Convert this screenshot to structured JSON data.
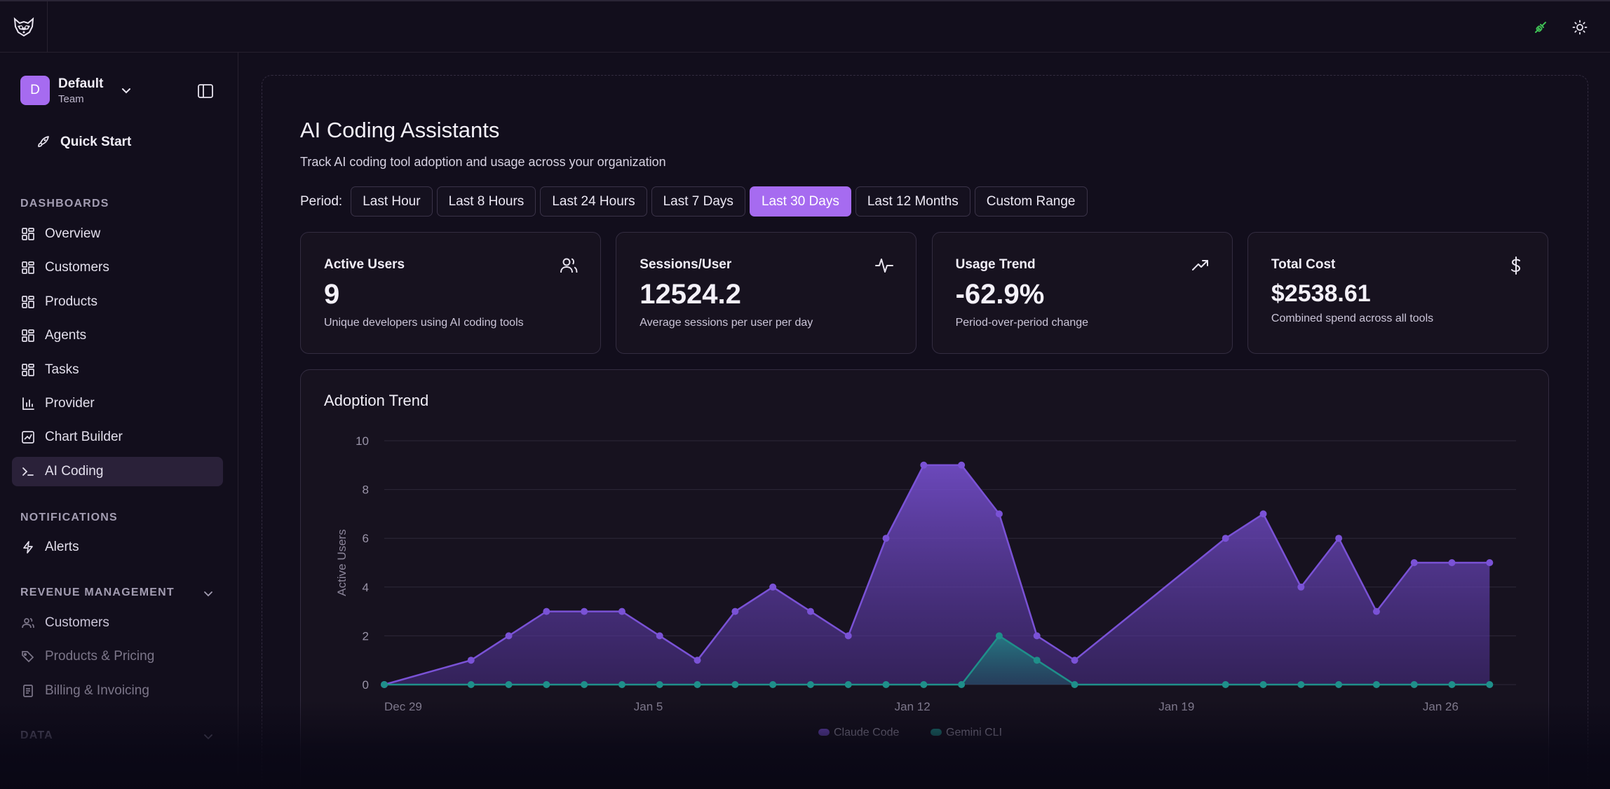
{
  "topbar": {
    "logo_icon": "raccoon-logo-icon",
    "status_icon": "plug-connected-icon",
    "theme_icon": "sun-icon",
    "status_color": "#3fbf55"
  },
  "sidebar": {
    "team": {
      "avatar": "D",
      "name": "Default",
      "sub": "Team"
    },
    "quick_start": "Quick Start",
    "dashboards_label": "DASHBOARDS",
    "dashboards": [
      {
        "label": "Overview",
        "icon": "grid-icon"
      },
      {
        "label": "Customers",
        "icon": "grid-icon"
      },
      {
        "label": "Products",
        "icon": "grid-icon"
      },
      {
        "label": "Agents",
        "icon": "grid-icon"
      },
      {
        "label": "Tasks",
        "icon": "grid-icon"
      },
      {
        "label": "Provider",
        "icon": "bar-chart-icon"
      },
      {
        "label": "Chart Builder",
        "icon": "chart-builder-icon"
      },
      {
        "label": "AI Coding",
        "icon": "terminal-icon",
        "active": true
      }
    ],
    "notifications_label": "NOTIFICATIONS",
    "alerts": "Alerts",
    "revenue_label": "REVENUE MANAGEMENT",
    "revenue_items": [
      {
        "label": "Customers",
        "icon": "users-icon"
      },
      {
        "label": "Products & Pricing",
        "icon": "tags-icon"
      },
      {
        "label": "Billing & Invoicing",
        "icon": "receipt-icon"
      }
    ],
    "data_label": "DATA"
  },
  "page": {
    "title": "AI Coding Assistants",
    "subtitle": "Track AI coding tool adoption and usage across your organization",
    "period_label": "Period:",
    "periods": [
      "Last Hour",
      "Last 8 Hours",
      "Last 24 Hours",
      "Last 7 Days",
      "Last 30 Days",
      "Last 12 Months",
      "Custom Range"
    ],
    "active_period": "Last 30 Days"
  },
  "cards": [
    {
      "title": "Active Users",
      "value": "9",
      "desc": "Unique developers using AI coding tools",
      "icon": "users-icon"
    },
    {
      "title": "Sessions/User",
      "value": "12524.2",
      "desc": "Average sessions per user per day",
      "icon": "activity-icon"
    },
    {
      "title": "Usage Trend",
      "value": "-62.9%",
      "desc": "Period-over-period change",
      "icon": "trending-up-icon"
    },
    {
      "title": "Total Cost",
      "value": "$2538.61",
      "desc": "Combined spend across all tools",
      "icon": "dollar-icon"
    }
  ],
  "chart_data": {
    "type": "area",
    "title": "Adoption Trend",
    "ylabel": "Active Users",
    "xlabel": "",
    "ylim": [
      0,
      10
    ],
    "yticks": [
      0,
      2,
      4,
      6,
      8,
      10
    ],
    "x_tick_labels": [
      "Dec 29",
      "Jan 5",
      "Jan 12",
      "Jan 19",
      "Jan 26"
    ],
    "x_tick_days": [
      0,
      7,
      14,
      21,
      28
    ],
    "x_days": [
      0,
      2.3,
      3.3,
      4.3,
      5.3,
      6.3,
      7.3,
      8.3,
      9.3,
      10.3,
      11.3,
      12.3,
      13.3,
      14.3,
      15.3,
      16.3,
      17.3,
      18.3,
      22.3,
      23.3,
      24.3,
      25.3,
      26.3,
      27.3,
      28.3,
      29.3
    ],
    "series": [
      {
        "name": "Claude Code",
        "color": "#7a52d6",
        "values": [
          0,
          1,
          2,
          3,
          3,
          3,
          2,
          1,
          3,
          4,
          3,
          2,
          6,
          9,
          9,
          7,
          2,
          1,
          6,
          7,
          4,
          6,
          3,
          5,
          5,
          5
        ]
      },
      {
        "name": "Gemini CLI",
        "color": "#1f8f8a",
        "values": [
          0,
          0,
          0,
          0,
          0,
          0,
          0,
          0,
          0,
          0,
          0,
          0,
          0,
          0,
          0,
          2,
          1,
          0,
          0,
          0,
          0,
          0,
          0,
          0,
          0,
          0
        ]
      }
    ],
    "legend": "bottom-center",
    "grid": true
  }
}
